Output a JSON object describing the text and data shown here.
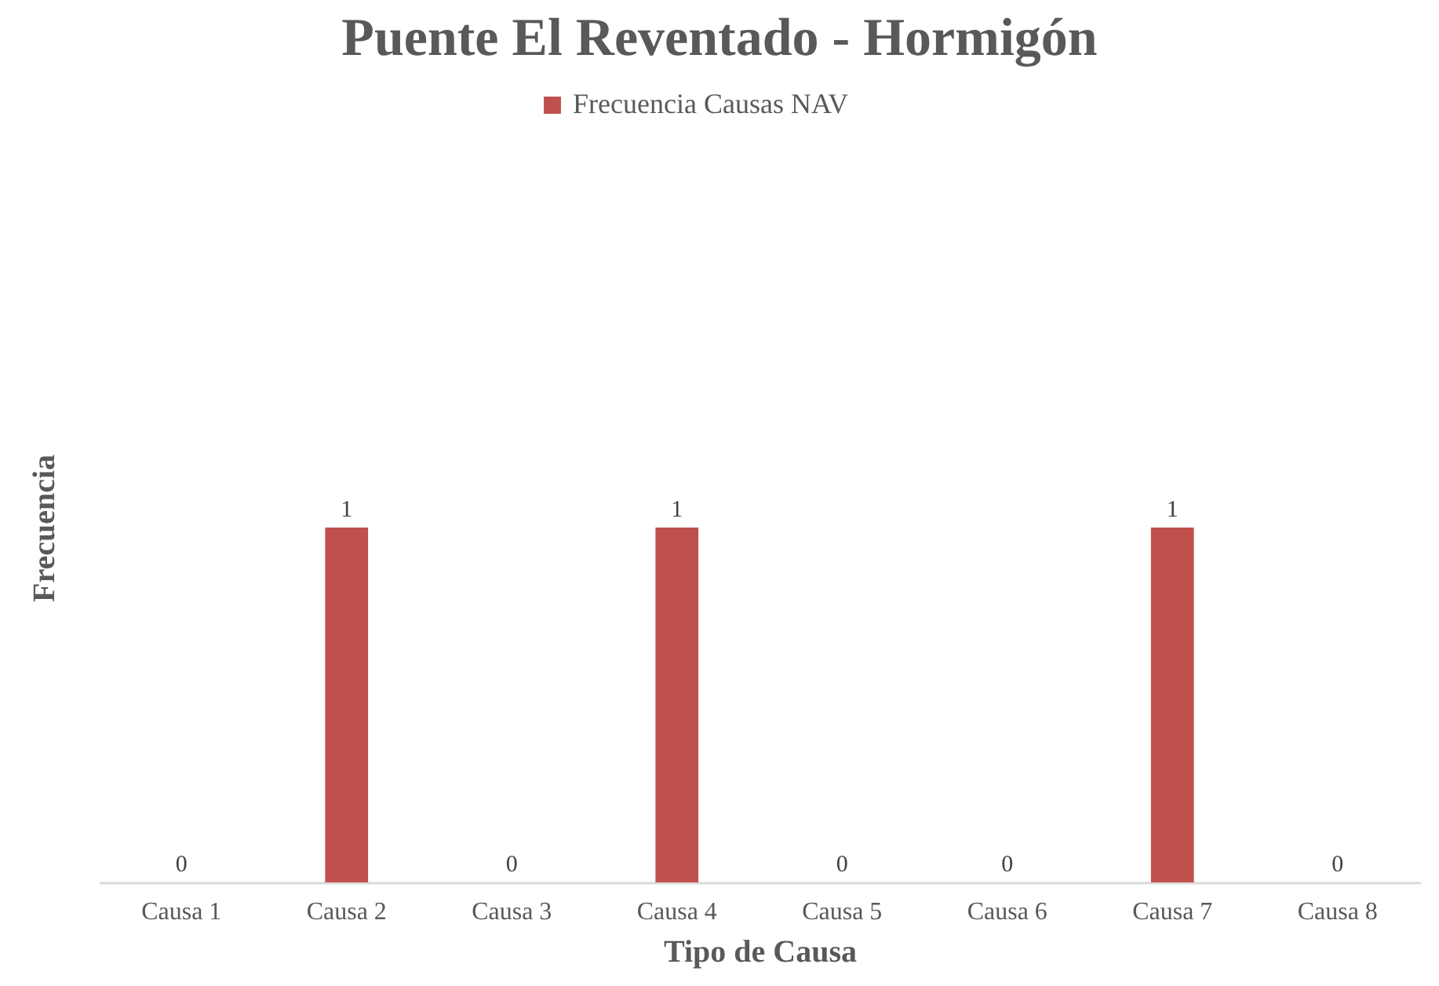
{
  "chart_data": {
    "type": "bar",
    "title": "Puente El Reventado - Hormigón",
    "xlabel": "Tipo de Causa",
    "ylabel": "Frecuencia",
    "categories": [
      "Causa 1",
      "Causa 2",
      "Causa 3",
      "Causa 4",
      "Causa 5",
      "Causa 6",
      "Causa 7",
      "Causa 8"
    ],
    "series": [
      {
        "name": "Frecuencia Causas NAV",
        "color": "#c0504d",
        "values": [
          0,
          1,
          0,
          1,
          0,
          0,
          1,
          0
        ]
      }
    ],
    "data_labels": true,
    "legend": "top",
    "grid": false,
    "tick_labels": "x"
  }
}
